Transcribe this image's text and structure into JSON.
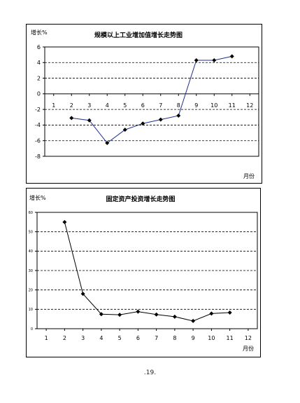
{
  "page_number": ".19.",
  "chart_data": [
    {
      "type": "line",
      "title": "规模以上工业增加值增长走势图",
      "ylabel": "增长%",
      "xlabel": "月份",
      "categories": [
        "1",
        "2",
        "3",
        "4",
        "5",
        "6",
        "7",
        "8",
        "9",
        "10",
        "11",
        "12"
      ],
      "y_ticks": [
        "6",
        "4",
        "2",
        "0",
        "-2",
        "-4",
        "-6",
        "-8"
      ],
      "ylim": [
        -8,
        6
      ],
      "grid": true,
      "series": [
        {
          "color": "#1f2f8f",
          "x": [
            2,
            3,
            4,
            5,
            6,
            7,
            8,
            9,
            10,
            11
          ],
          "values": [
            -3.1,
            -3.4,
            -6.3,
            -4.6,
            -3.8,
            -3.3,
            -2.8,
            4.3,
            4.3,
            4.8
          ]
        }
      ]
    },
    {
      "type": "line",
      "title": "固定资产投资增长走势图",
      "ylabel": "增长%",
      "xlabel": "月份",
      "categories": [
        "1",
        "2",
        "3",
        "4",
        "5",
        "6",
        "7",
        "8",
        "9",
        "10",
        "11",
        "12"
      ],
      "y_ticks": [
        "60",
        "50",
        "40",
        "30",
        "20",
        "10",
        "0"
      ],
      "ylim": [
        0,
        60
      ],
      "grid": true,
      "series": [
        {
          "color": "#000000",
          "x": [
            2,
            3,
            4,
            5,
            6,
            7,
            8,
            9,
            10,
            11
          ],
          "values": [
            55,
            18,
            7.5,
            7.2,
            8.8,
            7.3,
            6.2,
            4,
            7.8,
            8.3
          ]
        }
      ]
    }
  ]
}
